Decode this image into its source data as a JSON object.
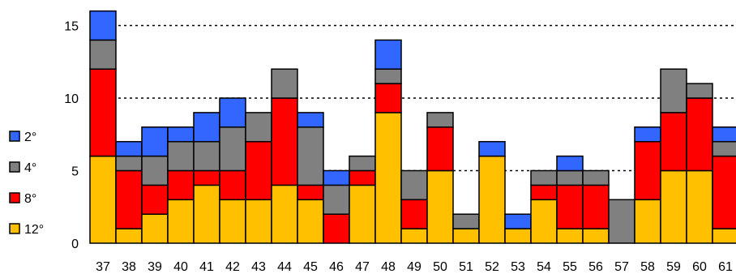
{
  "chart_data": {
    "type": "bar",
    "stacked": true,
    "categories": [
      "37",
      "38",
      "39",
      "40",
      "41",
      "42",
      "43",
      "44",
      "45",
      "46",
      "47",
      "48",
      "49",
      "50",
      "51",
      "52",
      "53",
      "54",
      "55",
      "56",
      "57",
      "58",
      "59",
      "60",
      "61"
    ],
    "series": [
      {
        "name": "12°",
        "color": "#FFC000",
        "values": [
          6,
          1,
          2,
          3,
          4,
          3,
          3,
          4,
          3,
          0,
          4,
          9,
          1,
          5,
          1,
          6,
          1,
          3,
          1,
          1,
          0,
          3,
          5,
          5,
          1
        ]
      },
      {
        "name": "8°",
        "color": "#FF0000",
        "values": [
          6,
          4,
          2,
          2,
          1,
          2,
          4,
          6,
          1,
          2,
          1,
          2,
          2,
          3,
          0,
          0,
          0,
          1,
          3,
          3,
          0,
          4,
          4,
          5,
          5
        ]
      },
      {
        "name": "4°",
        "color": "#808080",
        "values": [
          2,
          1,
          2,
          2,
          2,
          3,
          2,
          2,
          4,
          2,
          1,
          1,
          2,
          1,
          1,
          0,
          0,
          1,
          1,
          1,
          3,
          0,
          3,
          1,
          1
        ]
      },
      {
        "name": "2°",
        "color": "#3366FF",
        "values": [
          2,
          1,
          2,
          1,
          2,
          2,
          0,
          0,
          1,
          1,
          0,
          2,
          0,
          0,
          0,
          1,
          1,
          0,
          1,
          0,
          0,
          1,
          0,
          0,
          1
        ]
      }
    ],
    "ylim": [
      0,
      16
    ],
    "yticks": [
      0,
      5,
      10,
      15
    ],
    "grid": "dashed horizontal at 5, 10, 15",
    "legend_position": "left"
  }
}
